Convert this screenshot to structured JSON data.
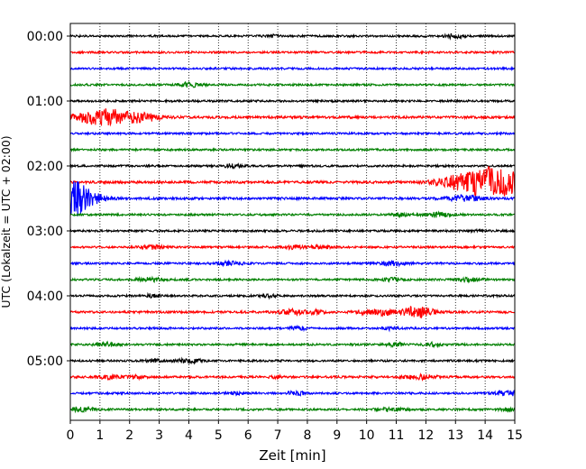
{
  "chart_data": {
    "type": "line",
    "title": "",
    "xlabel": "Zeit  [min]",
    "ylabel": "UTC (Lokalzeit = UTC + 02:00)",
    "xlim": [
      0,
      15
    ],
    "x_ticks": [
      "0",
      "1",
      "2",
      "3",
      "4",
      "5",
      "6",
      "7",
      "8",
      "9",
      "10",
      "11",
      "12",
      "13",
      "14",
      "15"
    ],
    "y_ticks": [
      "00:00",
      "01:00",
      "02:00",
      "03:00",
      "04:00",
      "05:00"
    ],
    "grid": "vertical dotted lines at each minute",
    "trace_interval_min": 15,
    "trace_colors": [
      "#000000",
      "#ff0000",
      "#0000ff",
      "#008000"
    ],
    "series": [
      {
        "start": "00:00",
        "amplitude": 1.0,
        "events": [
          [
            6.8,
            1.2,
            0.15
          ],
          [
            12.95,
            2.2,
            0.2
          ]
        ]
      },
      {
        "start": "00:15",
        "amplitude": 1.0,
        "events": []
      },
      {
        "start": "00:30",
        "amplitude": 1.0,
        "events": []
      },
      {
        "start": "00:45",
        "amplitude": 1.0,
        "events": [
          [
            4.05,
            2.5,
            0.25
          ]
        ]
      },
      {
        "start": "01:00",
        "amplitude": 1.0,
        "events": []
      },
      {
        "start": "01:15",
        "amplitude": 1.2,
        "events": [
          [
            1.3,
            9.0,
            0.8
          ],
          [
            2.6,
            2.0,
            0.3
          ]
        ]
      },
      {
        "start": "01:30",
        "amplitude": 1.0,
        "events": []
      },
      {
        "start": "01:45",
        "amplitude": 1.0,
        "events": []
      },
      {
        "start": "02:00",
        "amplitude": 1.0,
        "events": [
          [
            5.5,
            2.2,
            0.2
          ]
        ]
      },
      {
        "start": "02:15",
        "amplitude": 1.2,
        "events": [
          [
            14.2,
            17.0,
            0.8
          ],
          [
            12.8,
            2.5,
            0.5
          ]
        ]
      },
      {
        "start": "02:30",
        "amplitude": 1.2,
        "events": [
          [
            0.1,
            16.0,
            0.4
          ],
          [
            0.6,
            5.0,
            0.4
          ],
          [
            13.3,
            3.0,
            0.4
          ]
        ]
      },
      {
        "start": "02:45",
        "amplitude": 1.0,
        "events": [
          [
            11.2,
            1.5,
            0.2
          ],
          [
            12.4,
            2.5,
            0.3
          ]
        ]
      },
      {
        "start": "03:00",
        "amplitude": 1.0,
        "events": [
          [
            13.8,
            1.5,
            0.15
          ]
        ]
      },
      {
        "start": "03:15",
        "amplitude": 1.0,
        "events": [
          [
            2.8,
            1.8,
            0.3
          ],
          [
            7.6,
            1.8,
            0.3
          ],
          [
            8.5,
            1.5,
            0.25
          ]
        ]
      },
      {
        "start": "03:30",
        "amplitude": 1.0,
        "events": [
          [
            5.4,
            2.0,
            0.3
          ],
          [
            10.9,
            2.3,
            0.3
          ]
        ]
      },
      {
        "start": "03:45",
        "amplitude": 1.0,
        "events": [
          [
            2.7,
            2.0,
            0.3
          ],
          [
            10.9,
            1.8,
            0.25
          ],
          [
            13.5,
            2.0,
            0.3
          ]
        ]
      },
      {
        "start": "04:00",
        "amplitude": 1.0,
        "events": [
          [
            2.8,
            2.5,
            0.15
          ],
          [
            6.7,
            1.5,
            0.2
          ]
        ]
      },
      {
        "start": "04:15",
        "amplitude": 1.1,
        "events": [
          [
            7.5,
            2.5,
            0.3
          ],
          [
            8.3,
            2.0,
            0.2
          ],
          [
            10.0,
            2.0,
            0.25
          ],
          [
            11.7,
            6.0,
            0.4
          ],
          [
            10.6,
            3.0,
            0.2
          ]
        ]
      },
      {
        "start": "04:30",
        "amplitude": 1.0,
        "events": [
          [
            7.7,
            1.8,
            0.2
          ],
          [
            10.8,
            1.5,
            0.2
          ]
        ]
      },
      {
        "start": "04:45",
        "amplitude": 1.0,
        "events": [
          [
            1.2,
            2.2,
            0.25
          ],
          [
            11.0,
            2.0,
            0.2
          ],
          [
            12.2,
            1.8,
            0.2
          ]
        ]
      },
      {
        "start": "05:00",
        "amplitude": 1.0,
        "events": [
          [
            2.8,
            1.5,
            0.2
          ],
          [
            4.0,
            2.0,
            0.3
          ]
        ]
      },
      {
        "start": "05:15",
        "amplitude": 1.1,
        "events": [
          [
            1.3,
            1.8,
            0.3
          ],
          [
            2.2,
            1.5,
            0.2
          ],
          [
            7.0,
            1.5,
            0.15
          ],
          [
            11.8,
            2.2,
            0.4
          ]
        ]
      },
      {
        "start": "05:30",
        "amplitude": 1.0,
        "events": [
          [
            5.6,
            1.8,
            0.2
          ],
          [
            7.6,
            2.0,
            0.2
          ],
          [
            14.8,
            2.5,
            0.3
          ]
        ]
      },
      {
        "start": "05:45",
        "amplitude": 1.0,
        "events": [
          [
            0.4,
            1.8,
            0.3
          ],
          [
            10.8,
            1.8,
            0.3
          ],
          [
            14.8,
            2.5,
            0.2
          ]
        ]
      }
    ]
  }
}
